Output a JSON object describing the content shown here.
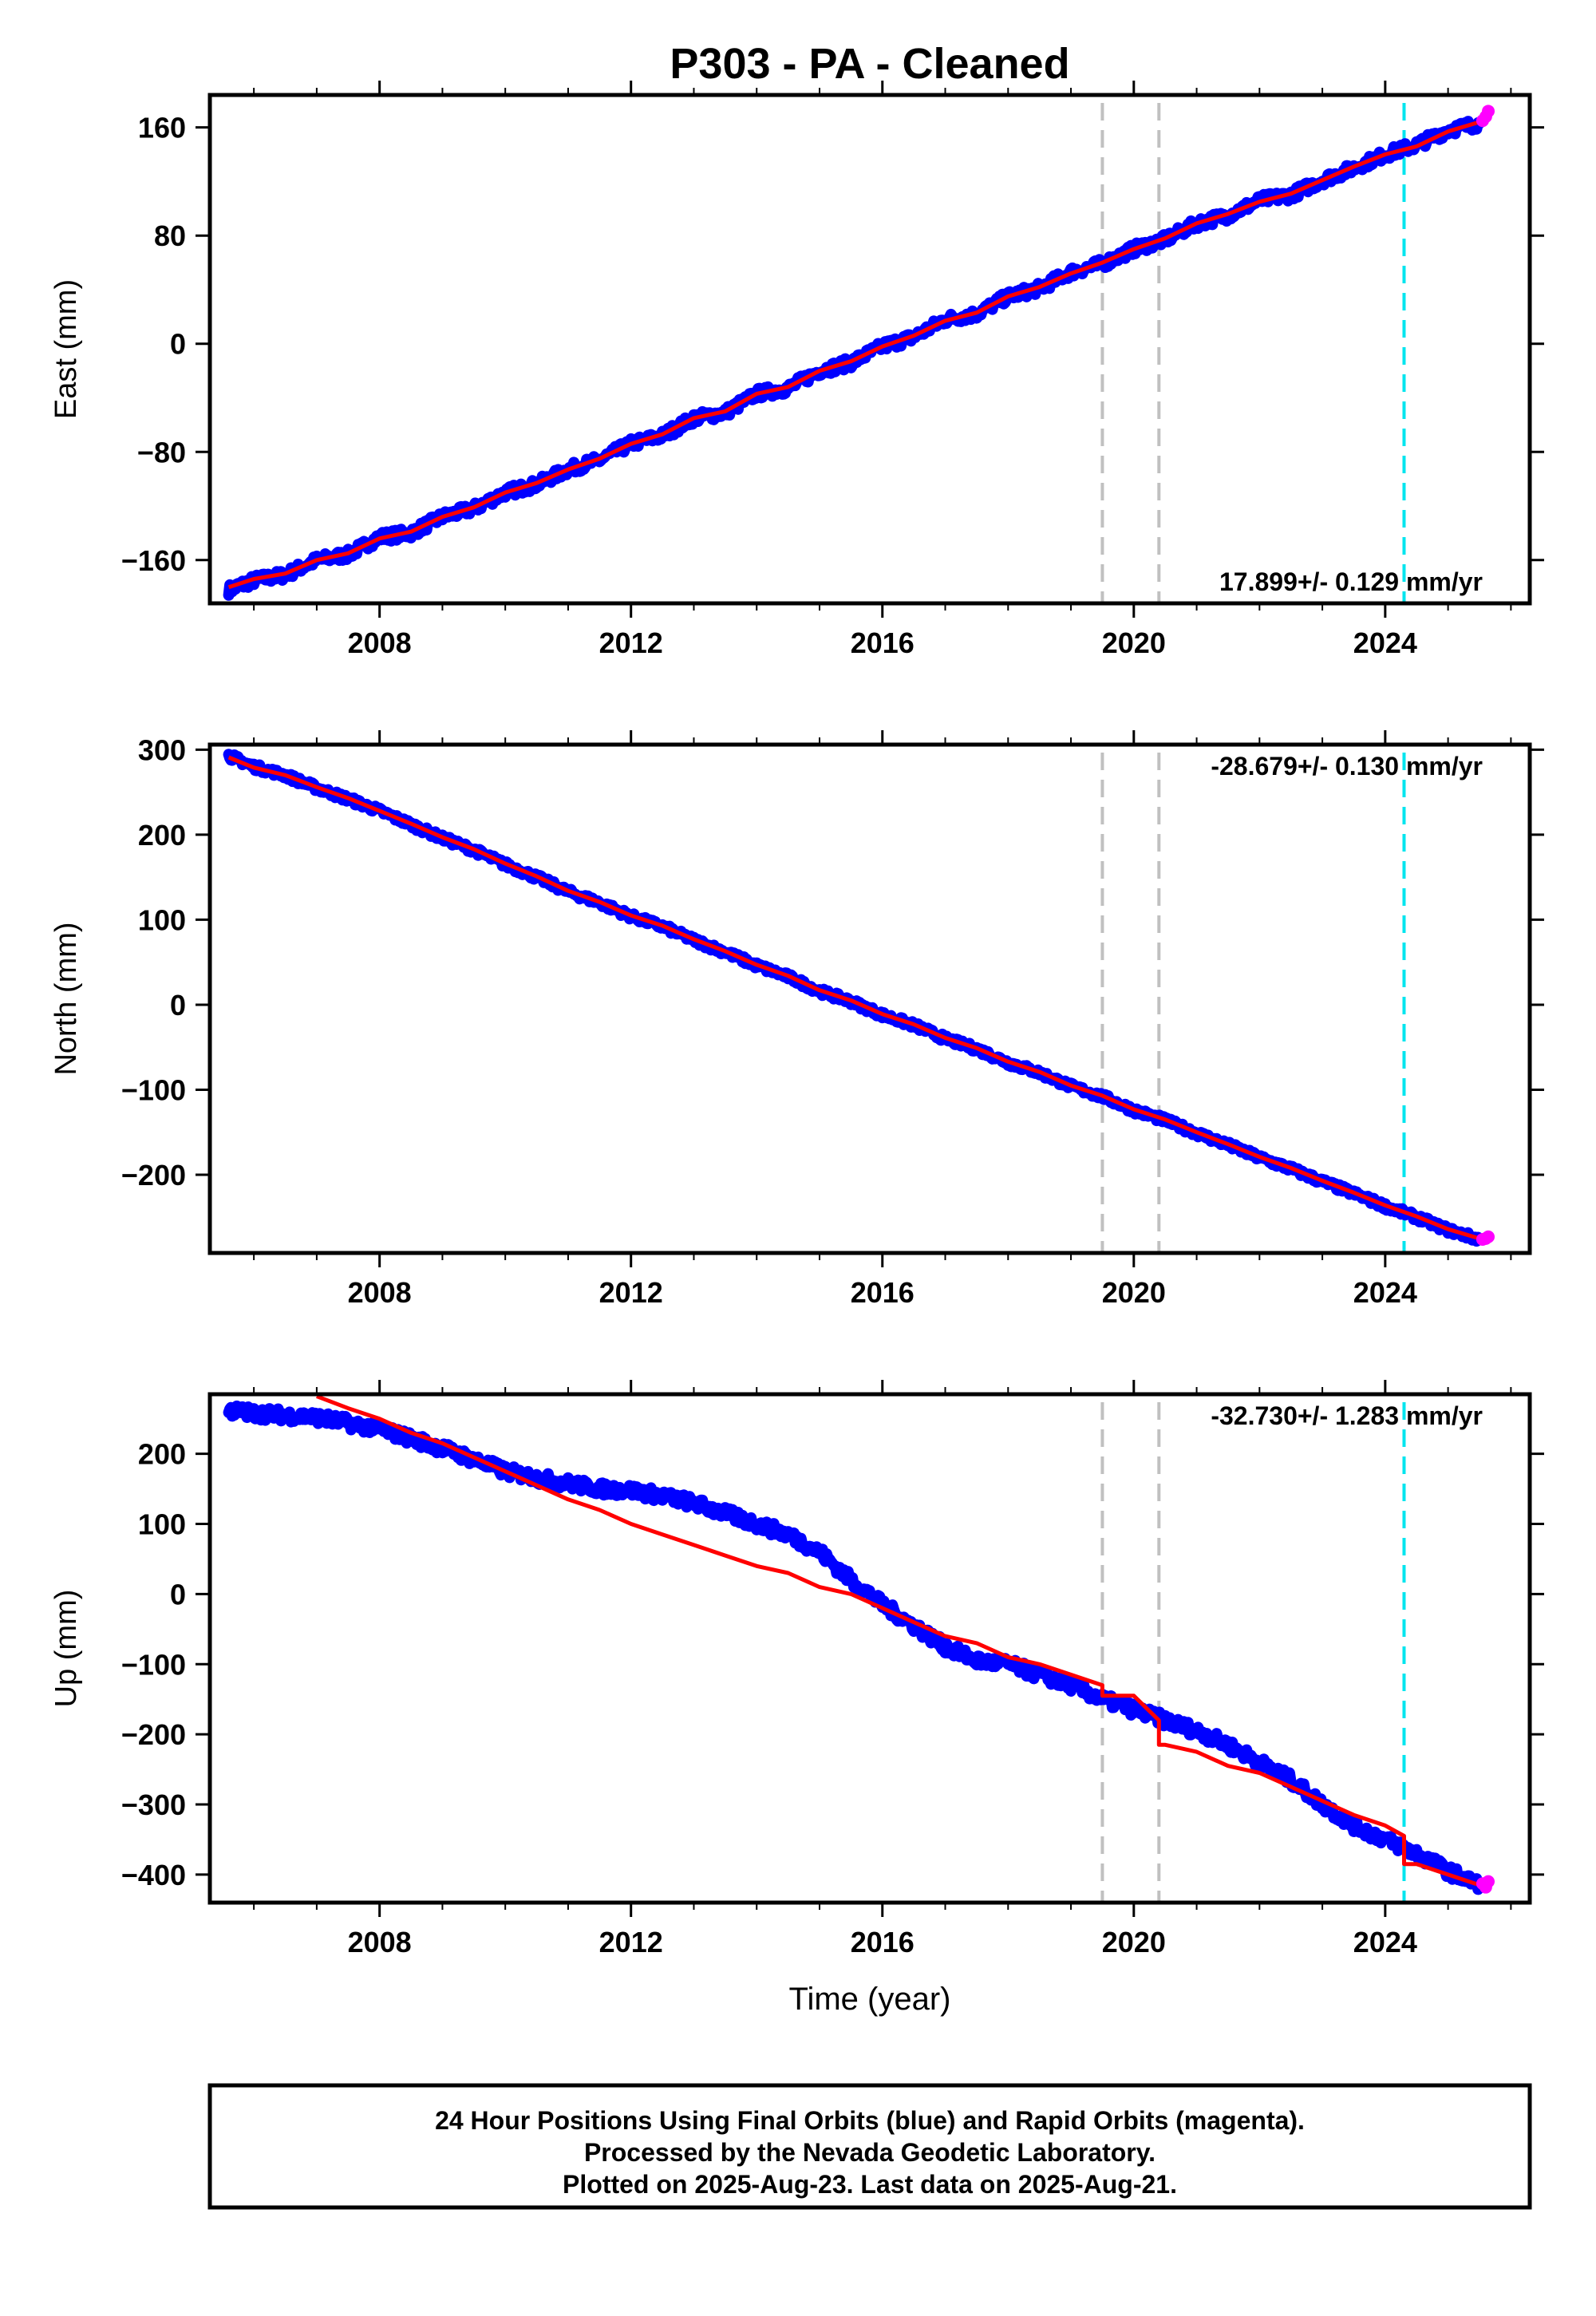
{
  "title": "P303  - PA - Cleaned",
  "x_axis_label": "Time (year)",
  "footer": {
    "line1": "24 Hour Positions Using Final Orbits (blue) and Rapid Orbits (magenta).",
    "line2": "Processed by the Nevada Geodetic Laboratory.",
    "line3": "Plotted on 2025-Aug-23. Last data on 2025-Aug-21."
  },
  "colors": {
    "final_orbits": "#0000ff",
    "rapid_orbits": "#ff00ff",
    "model": "#ff0000",
    "event_gray": "#c0c0c0",
    "event_cyan": "#00e5ee"
  },
  "chart_data": [
    {
      "type": "line",
      "panel": "east",
      "ylabel": "East (mm)",
      "rate_label": "17.899+/- 0.129 mm/yr",
      "rate_position": "bottom-right",
      "xlim": [
        2005.3,
        2026.3
      ],
      "ylim": [
        -192,
        184
      ],
      "yticks": [
        -160,
        -80,
        0,
        80,
        160
      ],
      "xticks": [
        2008,
        2012,
        2016,
        2020,
        2024
      ],
      "x": [
        2005.6,
        2006.0,
        2006.5,
        2007.0,
        2007.5,
        2008.0,
        2008.5,
        2009.0,
        2009.5,
        2010.0,
        2010.5,
        2011.0,
        2011.5,
        2012.0,
        2012.5,
        2013.0,
        2013.5,
        2014.0,
        2014.5,
        2015.0,
        2015.5,
        2016.0,
        2016.5,
        2017.0,
        2017.5,
        2018.0,
        2018.5,
        2019.0,
        2019.5,
        2020.0,
        2020.5,
        2021.0,
        2021.5,
        2022.0,
        2022.5,
        2023.0,
        2023.5,
        2024.0,
        2024.5,
        2025.0,
        2025.5
      ],
      "final_orbits": [
        -182,
        -175,
        -171,
        -160,
        -156,
        -143,
        -140,
        -128,
        -122,
        -110,
        -104,
        -93,
        -86,
        -74,
        -68,
        -55,
        -51,
        -37,
        -33,
        -20,
        -14,
        -2,
        5,
        18,
        22,
        35,
        41,
        53,
        59,
        70,
        77,
        89,
        95,
        106,
        110,
        121,
        130,
        140,
        147,
        158,
        163
      ],
      "rapid_orbits": {
        "x": [
          2025.55,
          2025.6,
          2025.64
        ],
        "y": [
          165,
          168,
          172
        ]
      },
      "model": [
        -180,
        -174,
        -170,
        -160,
        -155,
        -144,
        -139,
        -128,
        -121,
        -110,
        -103,
        -93,
        -85,
        -74,
        -67,
        -55,
        -50,
        -37,
        -32,
        -20,
        -13,
        -2,
        6,
        17,
        23,
        35,
        42,
        52,
        60,
        70,
        78,
        89,
        96,
        105,
        111,
        121,
        131,
        140,
        146,
        157,
        164
      ],
      "events_gray": [
        2019.5,
        2020.4
      ],
      "events_cyan": [
        2024.3
      ]
    },
    {
      "type": "line",
      "panel": "north",
      "ylabel": "North (mm)",
      "rate_label": "-28.679+/- 0.130 mm/yr",
      "rate_position": "top-right",
      "xlim": [
        2005.3,
        2026.3
      ],
      "ylim": [
        -292,
        306
      ],
      "yticks": [
        -200,
        -100,
        0,
        100,
        200,
        300
      ],
      "xticks": [
        2008,
        2012,
        2016,
        2020,
        2024
      ],
      "x": [
        2005.6,
        2006.0,
        2006.5,
        2007.0,
        2007.5,
        2008.0,
        2008.5,
        2009.0,
        2009.5,
        2010.0,
        2010.5,
        2011.0,
        2011.5,
        2012.0,
        2012.5,
        2013.0,
        2013.5,
        2014.0,
        2014.5,
        2015.0,
        2015.5,
        2016.0,
        2016.5,
        2017.0,
        2017.5,
        2018.0,
        2018.5,
        2019.0,
        2019.5,
        2020.0,
        2020.5,
        2021.0,
        2021.5,
        2022.0,
        2022.5,
        2023.0,
        2023.5,
        2024.0,
        2024.5,
        2025.0,
        2025.5
      ],
      "final_orbits": [
        293,
        280,
        270,
        255,
        242,
        228,
        212,
        196,
        182,
        165,
        150,
        133,
        120,
        104,
        92,
        76,
        62,
        46,
        33,
        16,
        4,
        -12,
        -24,
        -40,
        -52,
        -68,
        -80,
        -96,
        -108,
        -124,
        -136,
        -151,
        -165,
        -180,
        -193,
        -208,
        -222,
        -237,
        -250,
        -265,
        -276
      ],
      "rapid_orbits": {
        "x": [
          2025.55,
          2025.6,
          2025.64
        ],
        "y": [
          -276,
          -275,
          -273
        ]
      },
      "model": [
        291,
        279,
        270,
        256,
        243,
        228,
        213,
        197,
        183,
        166,
        151,
        134,
        121,
        105,
        93,
        77,
        63,
        47,
        34,
        17,
        5,
        -11,
        -23,
        -39,
        -51,
        -67,
        -79,
        -95,
        -107,
        -123,
        -135,
        -150,
        -164,
        -179,
        -192,
        -207,
        -221,
        -236,
        -249,
        -264,
        -275
      ],
      "events_gray": [
        2019.5,
        2020.4
      ],
      "events_cyan": [
        2024.3
      ]
    },
    {
      "type": "line",
      "panel": "up",
      "ylabel": "Up (mm)",
      "rate_label": "-32.730+/- 1.283 mm/yr",
      "rate_position": "top-right",
      "xlim": [
        2005.3,
        2026.3
      ],
      "ylim": [
        -440,
        285
      ],
      "yticks": [
        -400,
        -300,
        -200,
        -100,
        0,
        100,
        200
      ],
      "xticks": [
        2008,
        2012,
        2016,
        2020,
        2024
      ],
      "x": [
        2005.6,
        2006.0,
        2006.5,
        2007.0,
        2007.5,
        2008.0,
        2008.5,
        2009.0,
        2009.5,
        2010.0,
        2010.5,
        2011.0,
        2011.5,
        2012.0,
        2012.5,
        2013.0,
        2013.5,
        2014.0,
        2014.5,
        2015.0,
        2015.5,
        2016.0,
        2016.5,
        2017.0,
        2017.5,
        2018.0,
        2018.5,
        2019.0,
        2019.5,
        2020.0,
        2020.5,
        2021.0,
        2021.5,
        2022.0,
        2022.5,
        2023.0,
        2023.5,
        2024.0,
        2024.5,
        2025.0,
        2025.5
      ],
      "final_orbits": [
        262,
        258,
        255,
        252,
        244,
        235,
        222,
        208,
        192,
        175,
        166,
        158,
        150,
        148,
        140,
        130,
        115,
        100,
        85,
        60,
        20,
        -15,
        -45,
        -75,
        -95,
        -100,
        -115,
        -130,
        -150,
        -165,
        -180,
        -195,
        -215,
        -240,
        -265,
        -300,
        -330,
        -350,
        -370,
        -395,
        -415
      ],
      "rapid_orbits": {
        "x": [
          2025.55,
          2025.6,
          2025.64
        ],
        "y": [
          -413,
          -418,
          -410
        ]
      },
      "model": [
        null,
        null,
        null,
        282,
        265,
        250,
        230,
        215,
        195,
        175,
        155,
        135,
        120,
        100,
        85,
        70,
        55,
        40,
        30,
        10,
        0,
        -20,
        -40,
        -60,
        -70,
        -90,
        -100,
        -115,
        -130,
        -145,
        -215,
        -225,
        -245,
        -255,
        -275,
        -295,
        -315,
        -330,
        -385,
        -400,
        -415
      ],
      "model_steps": [
        {
          "x": 2019.5,
          "from": -130,
          "to": -145
        },
        {
          "x": 2020.4,
          "from": -180,
          "to": -215
        },
        {
          "x": 2024.3,
          "from": -345,
          "to": -385
        }
      ],
      "events_gray": [
        2019.5,
        2020.4
      ],
      "events_cyan": [
        2024.3
      ]
    }
  ]
}
